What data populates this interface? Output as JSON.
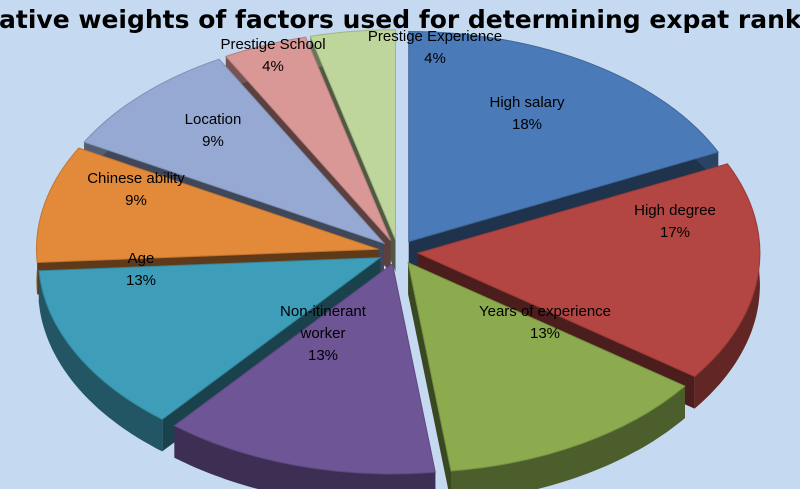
{
  "chart_data": {
    "type": "pie",
    "title": "Relative weights of factors used for determining expat ranking",
    "slices": [
      {
        "label": "High salary",
        "value": 18,
        "value_label": "18%",
        "color": "#4a7ab7"
      },
      {
        "label": "High degree",
        "value": 17,
        "value_label": "17%",
        "color": "#b34542"
      },
      {
        "label": "Years of experience",
        "value": 13,
        "value_label": "13%",
        "color": "#8bab4e"
      },
      {
        "label": "Non-itinerant worker",
        "value": 13,
        "value_label": "13%",
        "color": "#6e5596"
      },
      {
        "label": "Age",
        "value": 13,
        "value_label": "13%",
        "color": "#3e9db8"
      },
      {
        "label": "Chinese ability",
        "value": 9,
        "value_label": "9%",
        "color": "#e28a3a"
      },
      {
        "label": "Location",
        "value": 9,
        "value_label": "9%",
        "color": "#95a9d3"
      },
      {
        "label": "Prestige School",
        "value": 4,
        "value_label": "4%",
        "color": "#d99896"
      },
      {
        "label": "Prestige Experience",
        "value": 4,
        "value_label": "4%",
        "color": "#bed59b"
      }
    ],
    "three_d": true,
    "exploded": true,
    "legend": "none"
  }
}
